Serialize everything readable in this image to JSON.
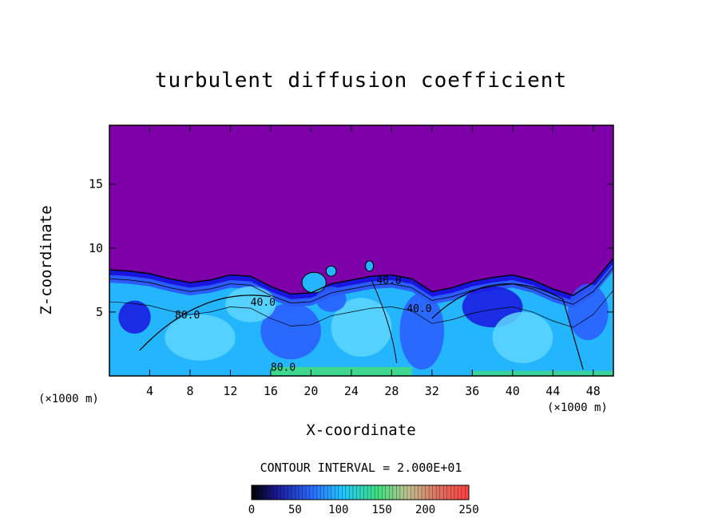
{
  "chart_data": {
    "type": "heatmap",
    "title": "turbulent diffusion coefficient",
    "xlabel": "X-coordinate",
    "ylabel": "Z-coordinate",
    "x_unit": "(×1000 m)",
    "y_unit": "(×1000 m)",
    "x_ticks": [
      4,
      8,
      12,
      16,
      20,
      24,
      28,
      32,
      36,
      40,
      44,
      48
    ],
    "y_ticks": [
      5,
      10,
      15
    ],
    "xlim": [
      0,
      50
    ],
    "ylim": [
      0,
      19.6
    ],
    "contour_interval_text": "CONTOUR INTERVAL = 2.000E+01",
    "contour_labels": [
      "40.0",
      "40.0",
      "80.0",
      "80.0",
      "40.0"
    ],
    "colorbar": {
      "ticks": [
        0,
        50,
        100,
        150,
        200,
        250
      ],
      "range": [
        0,
        250
      ]
    },
    "turbulent_layer_top_km": [
      [
        0,
        8.3
      ],
      [
        2,
        8.2
      ],
      [
        4,
        8.0
      ],
      [
        6,
        7.6
      ],
      [
        8,
        7.3
      ],
      [
        10,
        7.5
      ],
      [
        12,
        7.9
      ],
      [
        14,
        7.8
      ],
      [
        16,
        7.0
      ],
      [
        18,
        6.4
      ],
      [
        20,
        6.5
      ],
      [
        22,
        7.2
      ],
      [
        24,
        7.5
      ],
      [
        26,
        7.8
      ],
      [
        28,
        7.9
      ],
      [
        30,
        7.6
      ],
      [
        32,
        6.6
      ],
      [
        34,
        6.9
      ],
      [
        36,
        7.4
      ],
      [
        38,
        7.7
      ],
      [
        40,
        7.9
      ],
      [
        42,
        7.5
      ],
      [
        44,
        6.8
      ],
      [
        46,
        6.3
      ],
      [
        48,
        7.3
      ],
      [
        50,
        9.2
      ]
    ],
    "colors": {
      "background": "#7e00a8",
      "dark_blue": "#1a14e0",
      "blue": "#2a5cff",
      "cyan": "#23b6ff",
      "light_cyan": "#5ed6ff",
      "green": "#44e070"
    }
  }
}
